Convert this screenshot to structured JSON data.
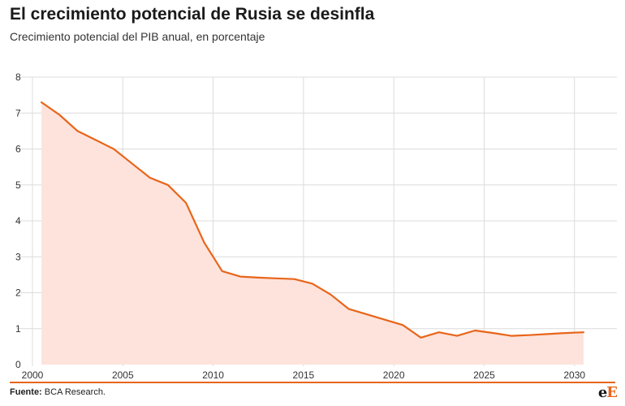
{
  "header": {
    "title": "El crecimiento potencial de Rusia se desinfla",
    "subtitle": "Crecimiento potencial del PIB anual, en porcentaje"
  },
  "footer": {
    "source_label": "Fuente:",
    "source_text": " BCA Research.",
    "logo_e1": "e",
    "logo_e2": "E"
  },
  "colors": {
    "line": "#e8651a",
    "area": "#fde3dc",
    "grid": "#dcdcdc",
    "accent": "#e8651a"
  },
  "chart_data": {
    "type": "area",
    "title": "El crecimiento potencial de Rusia se desinfla",
    "subtitle": "Crecimiento potencial del PIB anual, en porcentaje",
    "xlabel": "",
    "ylabel": "",
    "xlim": [
      2000,
      2031
    ],
    "ylim": [
      0,
      8
    ],
    "x_ticks": [
      2000,
      2005,
      2010,
      2015,
      2020,
      2025,
      2030
    ],
    "y_ticks": [
      0,
      1,
      2,
      3,
      4,
      5,
      6,
      7,
      8
    ],
    "grid": "vertical and horizontal",
    "series": [
      {
        "x": [
          2000.5,
          2001.5,
          2002.5,
          2003.5,
          2004.5,
          2005.5,
          2006.5,
          2007.5,
          2008.5,
          2009.5,
          2010.5,
          2011.5,
          2012.5,
          2013.5,
          2014.5,
          2015.5,
          2016.5,
          2017.5,
          2018.5,
          2019.5,
          2020.5,
          2021.5,
          2022.5,
          2023.5,
          2024.5,
          2025.5,
          2026.5,
          2027.5,
          2028.5,
          2029.5,
          2030.5
        ],
        "y": [
          7.3,
          6.95,
          6.5,
          6.25,
          6.0,
          5.6,
          5.2,
          5.0,
          4.5,
          3.4,
          2.6,
          2.45,
          2.42,
          2.4,
          2.38,
          2.25,
          1.95,
          1.55,
          1.4,
          1.25,
          1.1,
          0.75,
          0.9,
          0.8,
          0.95,
          0.88,
          0.8,
          0.82,
          0.85,
          0.88,
          0.9
        ]
      }
    ]
  }
}
